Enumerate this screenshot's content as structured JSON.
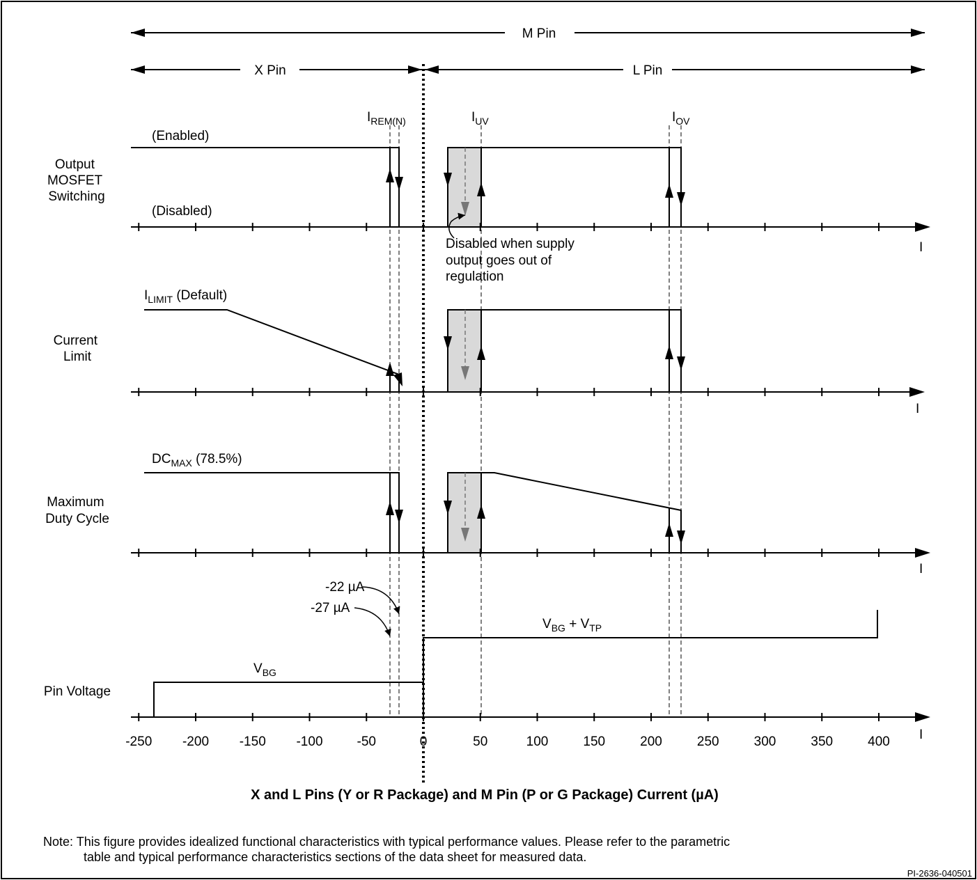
{
  "pin_ranges": {
    "m_pin": "M Pin",
    "x_pin": "X Pin",
    "l_pin": "L Pin"
  },
  "thresholds": {
    "i_rem_main": "I",
    "i_rem_sub": "REM(N)",
    "i_uv_main": "I",
    "i_uv_sub": "UV",
    "i_ov_main": "I",
    "i_ov_sub": "OV"
  },
  "rows": {
    "mosfet": {
      "label_lines": [
        "Output",
        "MOSFET",
        "Switching"
      ],
      "enabled": "(Enabled)",
      "disabled": "(Disabled)",
      "annotation_lines": [
        "Disabled when supply",
        "output goes out of",
        "regulation"
      ],
      "axis_letter": "I"
    },
    "current_limit": {
      "label_lines": [
        "Current",
        "Limit"
      ],
      "level_main": "I",
      "level_sub": "LIMIT",
      "level_rest": " (Default)",
      "axis_letter": "I"
    },
    "duty_cycle": {
      "label_lines": [
        "Maximum",
        "Duty Cycle"
      ],
      "level_main": "DC",
      "level_sub": "MAX",
      "level_rest": " (78.5%)",
      "axis_letter": "I"
    },
    "pin_voltage": {
      "label": "Pin Voltage",
      "low_main": "V",
      "low_sub": "BG",
      "high_main": "V",
      "high_sub": "BG",
      "high_mid": " + V",
      "high_sub2": "TP",
      "note_22": "-22 µA",
      "note_27": "-27 µA",
      "axis_letter": "I"
    }
  },
  "x_ticks": [
    "-250",
    "-200",
    "-150",
    "-100",
    "-50",
    "0",
    "50",
    "100",
    "150",
    "200",
    "250",
    "300",
    "350",
    "400"
  ],
  "x_axis_title": "X and L Pins (Y or R Package) and M Pin (P or G Package) Current (µA)",
  "note_lines": [
    "Note: This figure provides idealized functional characteristics with typical performance values. Please refer to the parametric",
    "table and typical performance characteristics sections of the data sheet for measured data."
  ],
  "figure_id": "PI-2636-040501",
  "chart_data": {
    "type": "line",
    "x_unit": "µA",
    "x_tick_values": [
      -250,
      -200,
      -150,
      -100,
      -50,
      0,
      50,
      100,
      150,
      200,
      250,
      300,
      350,
      400
    ],
    "thresholds_uA": {
      "I_REM(N)_low": -27,
      "I_REM(N)_high": -22,
      "I_UV_low": 22,
      "I_UV_high": 50,
      "I_OV_low": 216,
      "I_OV_high": 227
    },
    "current_limit_ramp_start_uA": -175,
    "duty_cycle_ramp_start_uA": 62,
    "pin_voltage": {
      "V_BG_range_uA": [
        -240,
        0
      ],
      "V_BG_plus_V_TP_range_uA": [
        0,
        400
      ]
    }
  }
}
